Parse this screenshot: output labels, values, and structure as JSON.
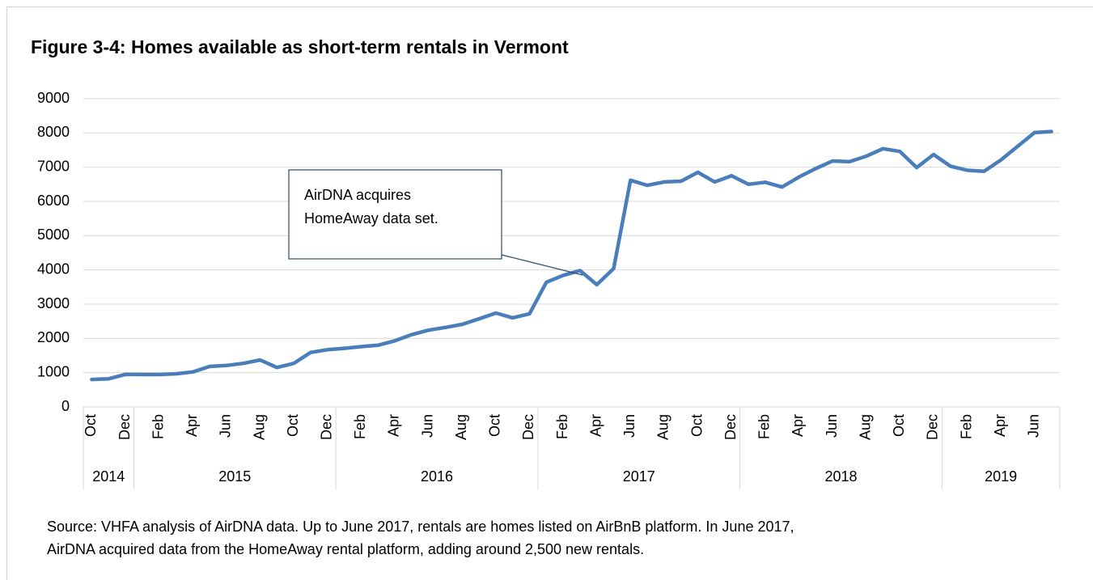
{
  "chart_data": {
    "type": "line",
    "title": "Figure 3-4: Homes available as short-term rentals in Vermont",
    "categories": [
      "Oct",
      null,
      "Dec",
      null,
      "Feb",
      null,
      "Apr",
      null,
      "Jun",
      null,
      "Aug",
      null,
      "Oct",
      null,
      "Dec",
      null,
      "Feb",
      null,
      "Apr",
      null,
      "Jun",
      null,
      "Aug",
      null,
      "Oct",
      null,
      "Dec",
      null,
      "Feb",
      null,
      "Apr",
      null,
      "Jun",
      null,
      "Aug",
      null,
      "Oct",
      null,
      "Dec",
      null,
      "Feb",
      null,
      "Apr",
      null,
      "Jun",
      null,
      "Aug",
      null,
      "Oct",
      null,
      "Dec",
      null,
      "Feb",
      null,
      "Apr",
      null,
      "Jun",
      null
    ],
    "years": [
      "2014",
      "2015",
      "2016",
      "2017",
      "2018",
      "2019"
    ],
    "series": [
      {
        "color": "#4a7ebb",
        "values": [
          800,
          820,
          950,
          945,
          945,
          965,
          1020,
          1180,
          1210,
          1270,
          1370,
          1150,
          1270,
          1590,
          1670,
          1710,
          1760,
          1800,
          1930,
          2110,
          2240,
          2320,
          2410,
          2570,
          2740,
          2600,
          2720,
          3640,
          3840,
          3980,
          3570,
          4040,
          6620,
          6470,
          6570,
          6590,
          6850,
          6570,
          6750,
          6500,
          6560,
          6420,
          6710,
          6960,
          7180,
          7160,
          7320,
          7540,
          7460,
          6990,
          7370,
          7030,
          6910,
          6880,
          7210,
          7610,
          8010,
          8040
        ]
      }
    ],
    "ylim": [
      0,
      9000
    ],
    "yticks": [
      0,
      1000,
      2000,
      3000,
      4000,
      5000,
      6000,
      7000,
      8000,
      9000
    ],
    "grid": true,
    "annotation": "AirDNA acquires HomeAway data set.",
    "source": [
      "Source: VHFA analysis of AirDNA data. Up to June 2017, rentals are homes listed on AirBnB platform. In June 2017,",
      "AirDNA acquired data from the HomeAway rental platform, adding around 2,500 new rentals."
    ]
  }
}
